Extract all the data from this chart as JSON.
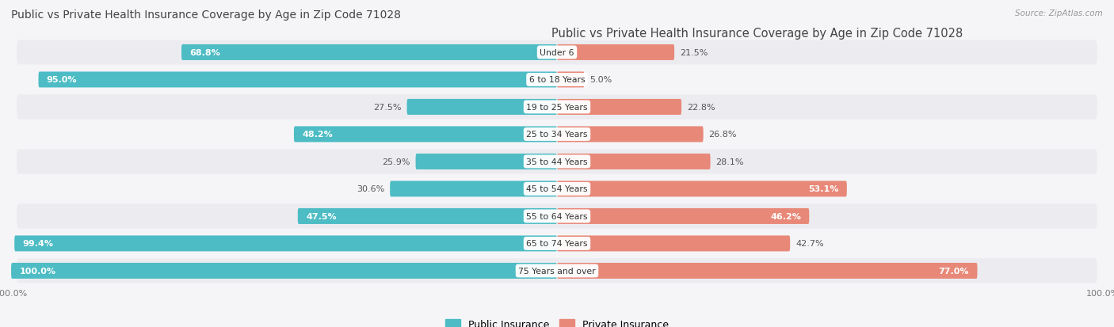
{
  "title": "Public vs Private Health Insurance Coverage by Age in Zip Code 71028",
  "source": "Source: ZipAtlas.com",
  "categories": [
    "Under 6",
    "6 to 18 Years",
    "19 to 25 Years",
    "25 to 34 Years",
    "35 to 44 Years",
    "45 to 54 Years",
    "55 to 64 Years",
    "65 to 74 Years",
    "75 Years and over"
  ],
  "public_values": [
    68.8,
    95.0,
    27.5,
    48.2,
    25.9,
    30.6,
    47.5,
    99.4,
    100.0
  ],
  "private_values": [
    21.5,
    5.0,
    22.8,
    26.8,
    28.1,
    53.1,
    46.2,
    42.7,
    77.0
  ],
  "public_color": "#4DBCC4",
  "private_color": "#E88878",
  "row_bg_color_odd": "#ECECF0",
  "row_bg_color_even": "#F5F5F8",
  "fig_bg_color": "#F5F5F8",
  "title_color": "#444444",
  "label_color_dark": "#555555",
  "label_color_white": "#FFFFFF",
  "max_value": 100.0,
  "bar_height": 0.58,
  "legend_public": "Public Insurance",
  "legend_private": "Private Insurance",
  "inside_threshold": 45
}
